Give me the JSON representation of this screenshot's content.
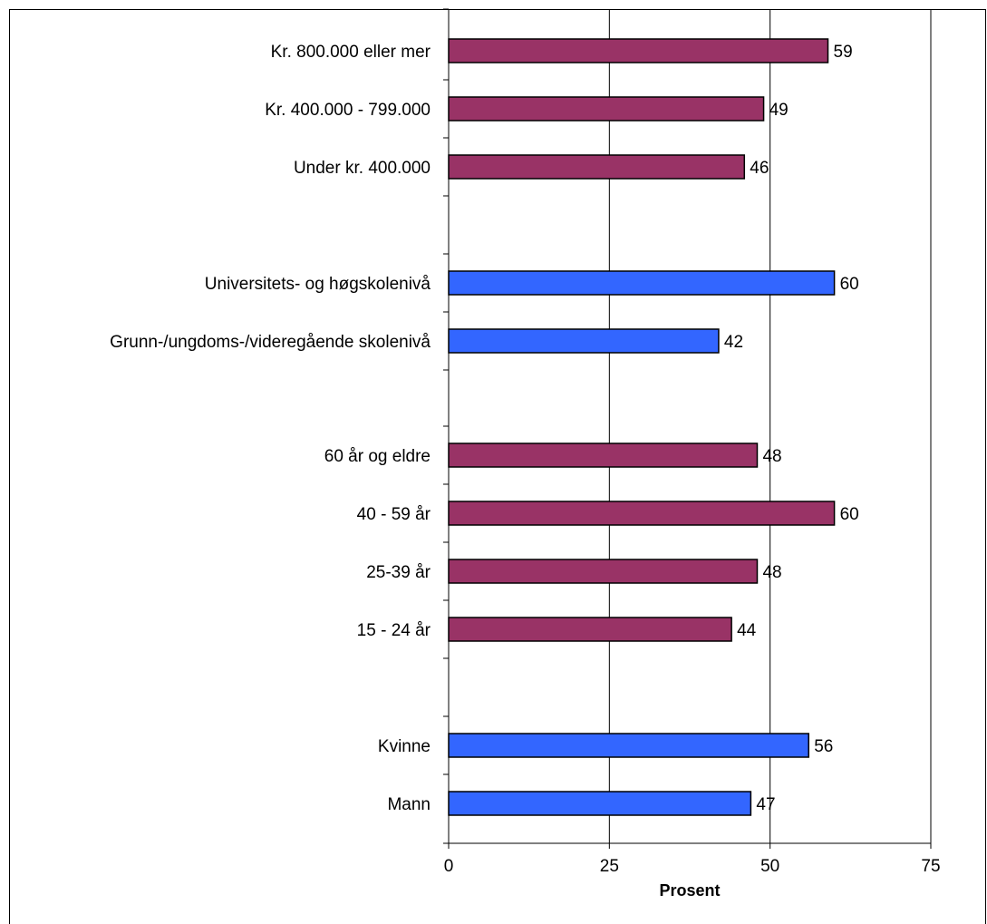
{
  "chart_data": {
    "type": "bar",
    "orientation": "horizontal",
    "title": "",
    "xlabel": "Prosent",
    "ylabel": "",
    "xlim": [
      0,
      75
    ],
    "xticks": [
      0,
      25,
      50,
      75
    ],
    "grid": true,
    "legend": "none",
    "colors": {
      "maroon": "#993366",
      "blue": "#3366FF"
    },
    "categories": [
      "Kr. 800.000 eller mer",
      "Kr. 400.000 - 799.000",
      "Under kr. 400.000",
      "Universitets- og høgskolenivå",
      "Grunn-/ungdoms-/videregående skolenivå",
      "60 år og eldre",
      "40 - 59 år",
      "25-39 år",
      "15 - 24 år",
      "Kvinne",
      "Mann"
    ],
    "values": [
      59,
      49,
      46,
      60,
      42,
      48,
      60,
      48,
      44,
      56,
      47
    ],
    "bar_colors": [
      "maroon",
      "maroon",
      "maroon",
      "blue",
      "blue",
      "maroon",
      "maroon",
      "maroon",
      "maroon",
      "blue",
      "blue"
    ]
  }
}
